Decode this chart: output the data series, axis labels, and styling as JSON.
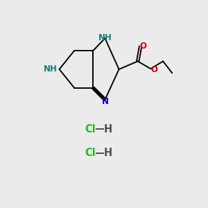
{
  "bg_color": "#ebebeb",
  "bond_color": "#000000",
  "N_color": "#0000ff",
  "NH_color": "#1a7a7a",
  "O_color": "#dd0000",
  "Cl_color": "#22bb22",
  "H_color": "#505050",
  "font_size_atom": 8.5,
  "font_size_hcl": 10.5,
  "lw": 1.4,
  "hcl1": [
    120,
    195
  ],
  "hcl2": [
    120,
    240
  ]
}
